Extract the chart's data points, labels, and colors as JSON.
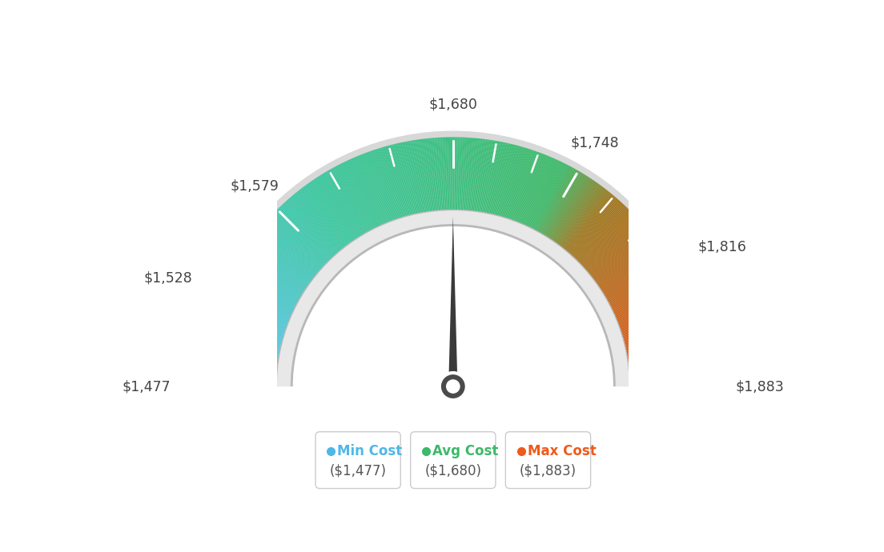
{
  "min_val": 1477,
  "max_val": 1883,
  "avg_val": 1680,
  "tick_labels": [
    "$1,477",
    "$1,528",
    "$1,579",
    "$1,680",
    "$1,748",
    "$1,816",
    "$1,883"
  ],
  "tick_values": [
    1477,
    1528,
    1579,
    1680,
    1748,
    1816,
    1883
  ],
  "legend": [
    {
      "label": "Min Cost",
      "value": "($1,477)",
      "color": "#4db8e8"
    },
    {
      "label": "Avg Cost",
      "value": "($1,680)",
      "color": "#3cb96a"
    },
    {
      "label": "Max Cost",
      "value": "($1,883)",
      "color": "#f05a1a"
    }
  ],
  "bg_color": "#ffffff",
  "needle_color": "#404040"
}
